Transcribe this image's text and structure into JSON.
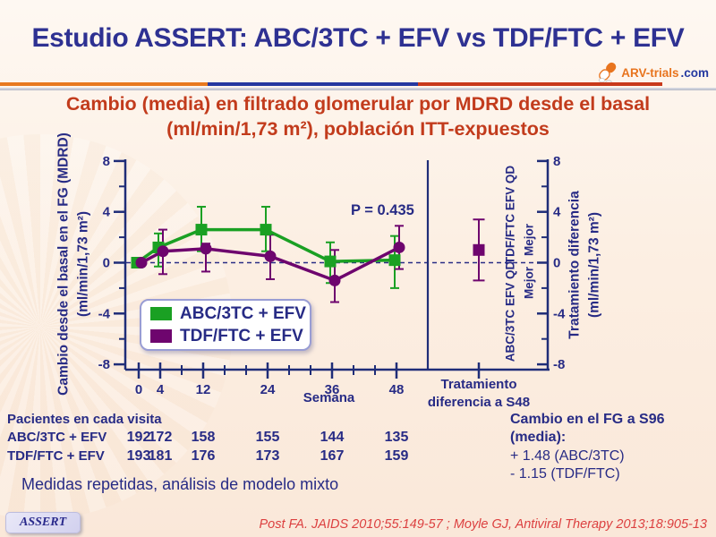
{
  "header": {
    "title": "Estudio ASSERT: ABC/3TC + EFV vs TDF/FTC + EFV",
    "logo": {
      "text_main": "ARV-trials",
      "text_suffix": ".com"
    },
    "subtitle_line1": "Cambio (media) en filtrado glomerular por MDRD desde el basal",
    "subtitle_line2": "(ml/min/1,73 m²), población ITT-expuestos"
  },
  "chart_data": {
    "type": "line",
    "x": [
      0,
      4,
      12,
      24,
      36,
      48
    ],
    "x_minor_ticks": [
      8,
      16,
      20,
      28,
      32,
      40,
      44
    ],
    "xlabel": "Semana",
    "ylim": [
      -8,
      8
    ],
    "yticks": [
      8,
      4,
      0,
      -4,
      -8
    ],
    "y_minor_ticks": [
      6,
      2,
      -2,
      -6
    ],
    "ylabel_left": [
      "Cambio desde el basal  en el FG (MDRD)",
      "(ml/min/1,73 m²)"
    ],
    "ylabel_right": [
      "Tratamiento diferencia",
      "(ml/min/1,73 m²)"
    ],
    "zero_line": "dashed",
    "legend_position": "lower-left",
    "p_value": "P = 0.435",
    "series": [
      {
        "name": "ABC/3TC + EFV",
        "color": "#1AA023",
        "marker": "square",
        "values": [
          0,
          1.2,
          2.6,
          2.6,
          0.1,
          0.2
        ],
        "ci_lo": [
          0,
          -0.3,
          0.9,
          0.9,
          -1.6,
          -2.0
        ],
        "ci_hi": [
          0,
          2.3,
          4.4,
          4.4,
          1.6,
          2.1
        ]
      },
      {
        "name": "TDF/FTC + EFV",
        "color": "#6E056E",
        "marker": "circle",
        "values": [
          0,
          0.9,
          1.1,
          0.5,
          -1.4,
          1.2
        ],
        "ci_lo": [
          0,
          -0.9,
          -0.7,
          -1.3,
          -3.1,
          -0.5
        ],
        "ci_hi": [
          0,
          2.6,
          1.5,
          2.2,
          1.0,
          2.9
        ]
      }
    ],
    "difference_panel": {
      "label_line1": "Tratamiento",
      "label_line2": "diferencia a S48",
      "value": 1.0,
      "ci_lo": -1.4,
      "ci_hi": 3.4,
      "color": "#6E056E",
      "annotations": {
        "upper_outer": "TDF/FTC EFV QD",
        "upper_inner": "Mejor",
        "lower_outer": "ABC/3TC EFV QD",
        "lower_inner": "Mejor"
      }
    }
  },
  "patients": {
    "header": "Pacientes en cada visita",
    "rows": [
      {
        "label": "ABC/3TC + EFV",
        "values": [
          192,
          172,
          158,
          155,
          144,
          135
        ]
      },
      {
        "label": "TDF/FTC + EFV",
        "values": [
          193,
          181,
          176,
          173,
          167,
          159
        ]
      }
    ]
  },
  "notes": {
    "method": "Medidas repetidas, análisis de modelo mixto",
    "summary_title": "Cambio en el FG a S96",
    "summary_subtitle": "(media):",
    "summary_line1": "+ 1.48 (ABC/3TC)",
    "summary_line2": "- 1.15 (TDF/FTC)"
  },
  "footer": {
    "badge": "ASSERT",
    "citation": "Post FA. JAIDS 2010;55:149-57 ; Moyle GJ, Antiviral Therapy 2013;18:905-13"
  },
  "colors": {
    "navy_text": "#272B85",
    "title_blue": "#2E3192",
    "red_heading": "#C23B1C",
    "green_series": "#1AA023",
    "purple_series": "#6E056E",
    "axis": "#1F2D78",
    "citation_red": "#DC4040",
    "divider_orange": "#E8791F",
    "divider_blue": "#2438A0",
    "divider_red": "#C8391B"
  }
}
